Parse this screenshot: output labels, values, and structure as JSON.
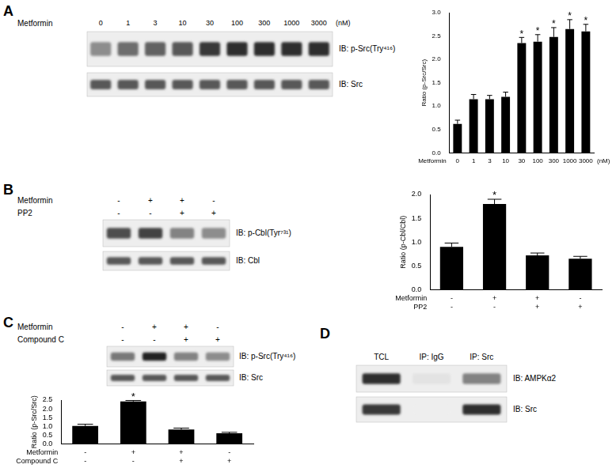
{
  "chart_data": [
    {
      "type": "bar",
      "categories": [
        "0",
        "1",
        "3",
        "10",
        "30",
        "100",
        "300",
        "1000",
        "3000"
      ],
      "values": [
        0.62,
        1.15,
        1.15,
        1.2,
        2.35,
        2.38,
        2.48,
        2.65,
        2.6
      ],
      "errors": [
        0.08,
        0.1,
        0.08,
        0.1,
        0.12,
        0.15,
        0.2,
        0.2,
        0.15
      ],
      "row_labels": [
        "Metformin"
      ],
      "x_unit": "(nM)",
      "ylabel": "Ratio (p-Src/Src)",
      "ylim": [
        0,
        3
      ],
      "yticks": [
        {
          "value": 0,
          "label": "0.0"
        },
        0.5,
        {
          "value": 1,
          "label": "1.0"
        },
        1.5,
        {
          "value": 2,
          "label": "2.0"
        },
        2.5,
        {
          "value": 3,
          "label": "3.0"
        }
      ],
      "color": "#000000",
      "grid": false,
      "annotations": [
        {
          "category_index": 4,
          "text": "*"
        },
        {
          "category_index": 5,
          "text": "*"
        },
        {
          "category_index": 6,
          "text": "*"
        },
        {
          "category_index": 7,
          "text": "*"
        },
        {
          "category_index": 8,
          "text": "*"
        }
      ]
    },
    {
      "type": "bar",
      "categories": [
        [
          "-",
          "-"
        ],
        [
          "+",
          "-"
        ],
        [
          "+",
          "+"
        ],
        [
          "-",
          "+"
        ]
      ],
      "values": [
        0.9,
        1.8,
        0.72,
        0.65
      ],
      "errors": [
        0.08,
        0.1,
        0.05,
        0.05
      ],
      "row_labels": [
        "Metformin",
        "PP2"
      ],
      "ylabel": "Ratio (p-Cbl/Cbl)",
      "ylim": [
        0,
        2
      ],
      "yticks": [
        {
          "value": 0,
          "label": "0.0"
        },
        0.5,
        {
          "value": 1,
          "label": "1.0"
        },
        1.5,
        {
          "value": 2,
          "label": "2.0"
        }
      ],
      "color": "#000000",
      "grid": false,
      "annotations": [
        {
          "category_index": 1,
          "text": "*"
        }
      ]
    },
    {
      "type": "bar",
      "categories": [
        [
          "-",
          "-"
        ],
        [
          "+",
          "-"
        ],
        [
          "+",
          "+"
        ],
        [
          "-",
          "+"
        ]
      ],
      "values": [
        1.02,
        2.42,
        0.82,
        0.6
      ],
      "errors": [
        0.1,
        0.06,
        0.08,
        0.06
      ],
      "row_labels": [
        "Metformin",
        "Compound C"
      ],
      "ylabel": "Ratio (p-Src/Src)",
      "ylim": [
        0,
        2.5
      ],
      "yticks": [
        {
          "value": 0,
          "label": "0.0"
        },
        0.5,
        {
          "value": 1,
          "label": "1.0"
        },
        1.5,
        {
          "value": 2,
          "label": "2.0"
        },
        2.5
      ],
      "color": "#000000",
      "grid": false,
      "annotations": [
        {
          "category_index": 1,
          "text": "*"
        }
      ]
    }
  ],
  "blots": [
    {
      "panel": "A",
      "header_rows": [
        {
          "label": "Metformin",
          "values": [
            "0",
            "1",
            "3",
            "10",
            "30",
            "100",
            "300",
            "1000",
            "3000"
          ],
          "unit": "(nM)"
        }
      ],
      "rows": [
        {
          "label": "IB: p-Src(Try⁴¹⁶)",
          "band_intensity": [
            0.45,
            0.6,
            0.65,
            0.7,
            0.85,
            0.9,
            0.9,
            0.9,
            0.9
          ]
        },
        {
          "label": "IB: Src",
          "band_intensity": [
            0.7,
            0.7,
            0.7,
            0.7,
            0.7,
            0.7,
            0.7,
            0.7,
            0.7
          ]
        }
      ]
    },
    {
      "panel": "B",
      "header_rows": [
        {
          "label": "Metformin",
          "values": [
            "-",
            "+",
            "+",
            "-"
          ]
        },
        {
          "label": "PP2",
          "values": [
            "-",
            "-",
            "+",
            "+"
          ]
        }
      ],
      "rows": [
        {
          "label": "IB: p-Cbl(Tyr⁷³¹)",
          "band_intensity": [
            0.75,
            0.8,
            0.5,
            0.45
          ]
        },
        {
          "label": "IB: Cbl",
          "band_intensity": [
            0.7,
            0.7,
            0.7,
            0.7
          ]
        }
      ]
    },
    {
      "panel": "C",
      "header_rows": [
        {
          "label": "Metformin",
          "values": [
            "-",
            "+",
            "+",
            "-"
          ]
        },
        {
          "label": "Compound C",
          "values": [
            "-",
            "-",
            "+",
            "+"
          ]
        }
      ],
      "rows": [
        {
          "label": "IB: p-Src(Try⁴¹⁶)",
          "band_intensity": [
            0.55,
            0.95,
            0.5,
            0.45
          ]
        },
        {
          "label": "IB: Src",
          "band_intensity": [
            0.7,
            0.7,
            0.7,
            0.7
          ]
        }
      ]
    },
    {
      "panel": "D",
      "header_rows": [
        {
          "values": [
            "TCL",
            "IP: IgG",
            "IP: Src"
          ]
        }
      ],
      "rows": [
        {
          "label": "IB: AMPKα2",
          "band_intensity": [
            0.9,
            0.05,
            0.5
          ]
        },
        {
          "label": "IB: Src",
          "band_intensity": [
            0.85,
            0,
            0.9
          ]
        }
      ]
    }
  ]
}
